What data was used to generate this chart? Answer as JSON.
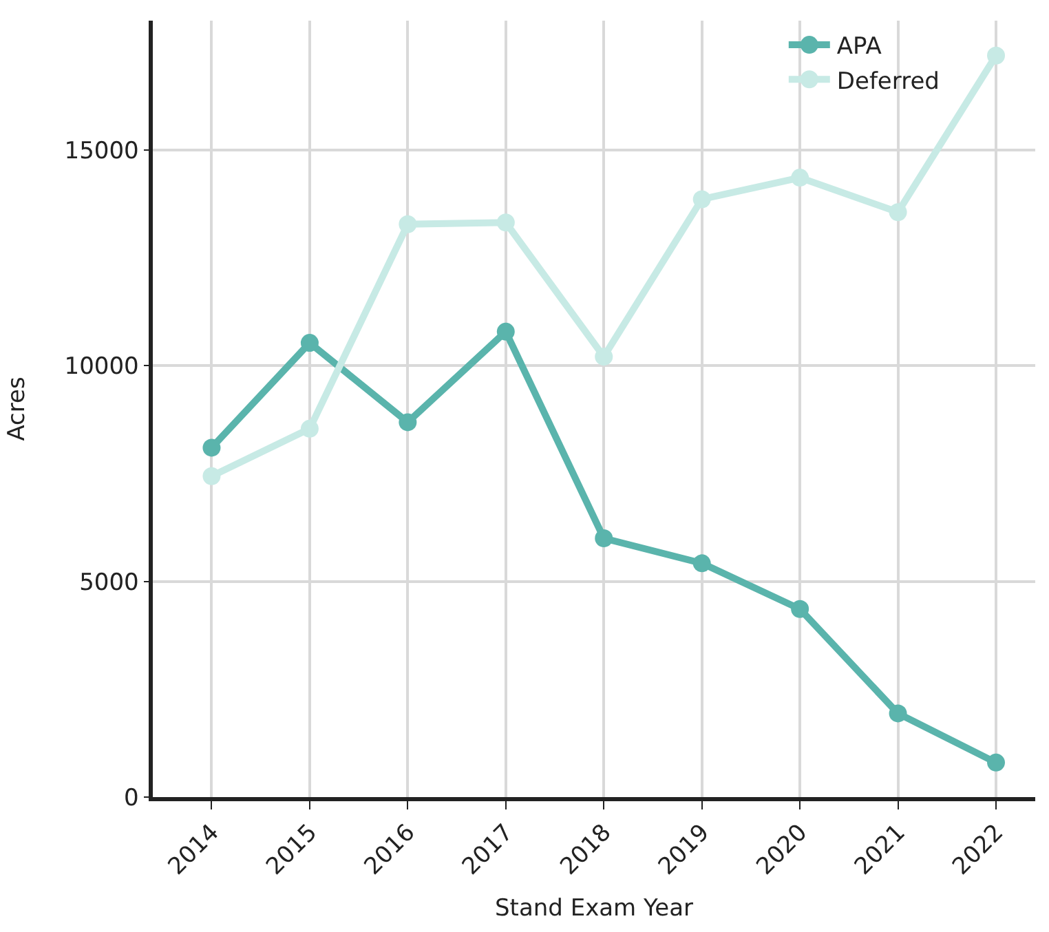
{
  "chart_data": {
    "type": "line",
    "xlabel": "Stand Exam Year",
    "ylabel": "Acres",
    "categories": [
      "2014",
      "2015",
      "2016",
      "2017",
      "2018",
      "2019",
      "2020",
      "2021",
      "2022"
    ],
    "series": [
      {
        "name": "APA",
        "color": "#5ab4ac",
        "values": [
          8100,
          10530,
          8690,
          10790,
          6000,
          5420,
          4360,
          1940,
          800
        ]
      },
      {
        "name": "Deferred",
        "color": "#c7eae5",
        "values": [
          7440,
          8540,
          13280,
          13320,
          10210,
          13860,
          14360,
          13560,
          17190
        ]
      }
    ],
    "ylim": [
      0,
      18000
    ],
    "yticks": [
      0,
      5000,
      10000,
      15000
    ],
    "grid": true,
    "legend": "top right",
    "marker": "circle",
    "line_style": "solid"
  }
}
